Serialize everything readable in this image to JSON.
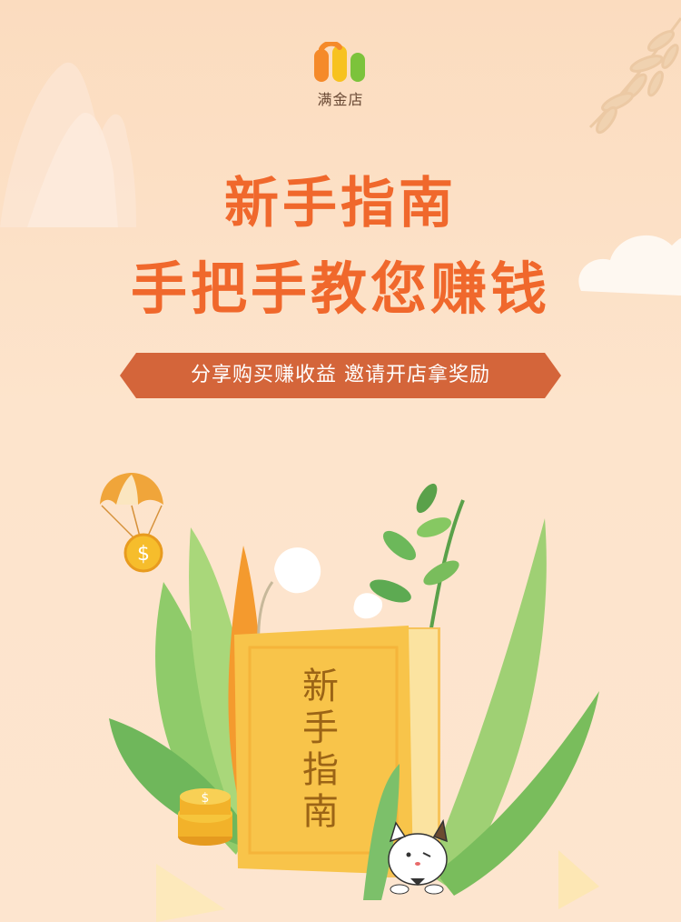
{
  "logo": {
    "text": "满金店",
    "colors": {
      "orange": "#f58a2a",
      "yellow": "#f7c21f",
      "green": "#7cc33b"
    }
  },
  "headline": {
    "line1": "新手指南",
    "line2": "手把手教您赚钱"
  },
  "ribbon": {
    "text": "分享购买赚收益 邀请开店拿奖励",
    "color": "#d4653a"
  },
  "book": {
    "chars": [
      "新",
      "手",
      "指",
      "南"
    ]
  },
  "icons": [
    "mountain-icon",
    "cloud-icon",
    "branch-icon",
    "parachute-coin-icon",
    "coin-stack-icon",
    "cat-mascot-icon",
    "leaves-illustration"
  ]
}
